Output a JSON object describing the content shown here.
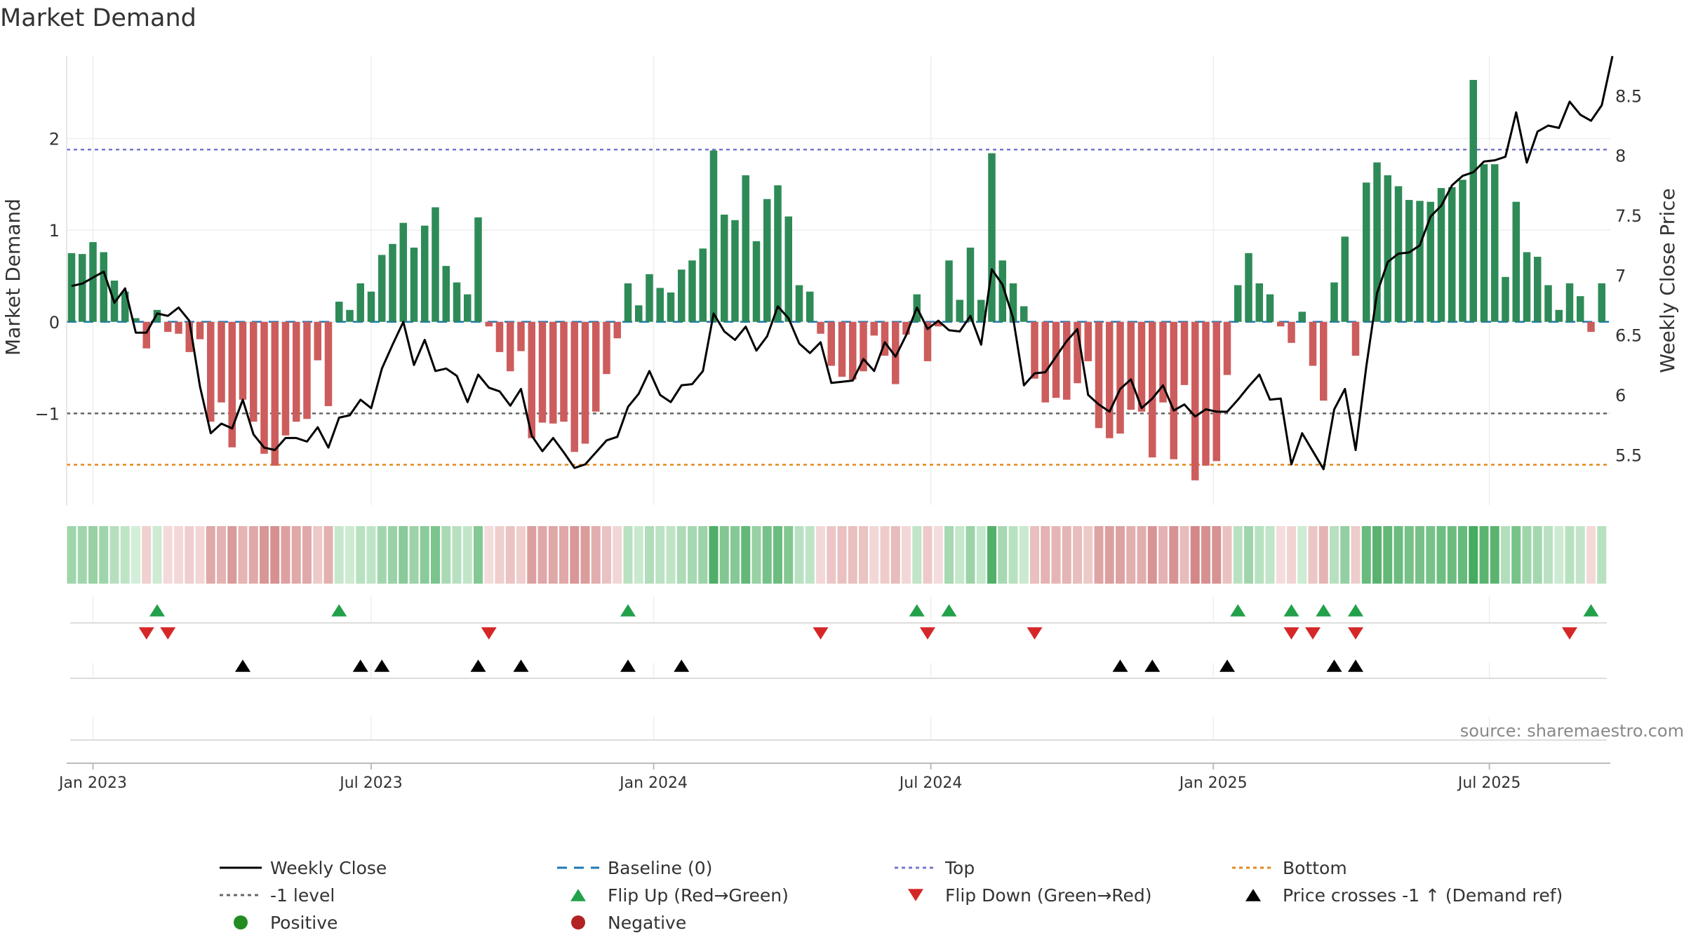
{
  "chart_data": {
    "type": "bar",
    "title": "Market Demand",
    "ylabel": "Market Demand",
    "y2label": "Weekly Close Price",
    "source": "source: sharemaestro.com",
    "ylim": [
      -2.0,
      2.9
    ],
    "y2lim": [
      5.08,
      8.83
    ],
    "yticks": [
      {
        "value": 2,
        "label": "2"
      },
      {
        "value": 1,
        "label": "1"
      },
      {
        "value": 0,
        "label": "0"
      },
      {
        "value": -1,
        "label": "−1"
      }
    ],
    "y2ticks": [
      {
        "value": 8.5,
        "label": "8.5"
      },
      {
        "value": 8,
        "label": "8"
      },
      {
        "value": 7.5,
        "label": "7.5"
      },
      {
        "value": 7,
        "label": "7"
      },
      {
        "value": 6.5,
        "label": "6.5"
      },
      {
        "value": 6,
        "label": "6"
      },
      {
        "value": 5.5,
        "label": "5.5"
      }
    ],
    "x_ticks": [
      {
        "week": 2,
        "label": "Jan 2023"
      },
      {
        "week": 28,
        "label": "Jul 2023"
      },
      {
        "week": 54.4,
        "label": "Jan 2024"
      },
      {
        "week": 80.3,
        "label": "Jul 2024"
      },
      {
        "week": 106.7,
        "label": "Jan 2025"
      },
      {
        "week": 132.5,
        "label": "Jul 2025"
      }
    ],
    "levels": {
      "top": 1.88,
      "minus_one": -1.0,
      "bottom": -1.56,
      "baseline": 0
    },
    "colors": {
      "positive": "#2e8b57",
      "negative": "#cd5c5c",
      "price": "#000000",
      "top": "#7777cc",
      "minus_one": "#666666",
      "bottom": "#e08a1e",
      "baseline": "#1f77b4",
      "flip_up": "#22a04a",
      "flip_down": "#d62728",
      "cross": "#000000",
      "positive_dot": "#228b22",
      "negative_dot": "#b22222"
    },
    "demand": [
      0.75,
      0.74,
      0.87,
      0.76,
      0.45,
      0.33,
      0.04,
      -0.29,
      0.13,
      -0.11,
      -0.13,
      -0.33,
      -0.19,
      -1.09,
      -0.88,
      -1.37,
      -0.85,
      -1.09,
      -1.44,
      -1.57,
      -1.24,
      -1.09,
      -1.06,
      -0.42,
      -0.92,
      0.22,
      0.13,
      0.42,
      0.33,
      0.73,
      0.85,
      1.08,
      0.81,
      1.05,
      1.25,
      0.61,
      0.43,
      0.3,
      1.14,
      -0.05,
      -0.33,
      -0.54,
      -0.32,
      -1.27,
      -1.1,
      -1.11,
      -1.09,
      -1.42,
      -1.33,
      -0.98,
      -0.57,
      -0.18,
      0.42,
      0.18,
      0.52,
      0.37,
      0.32,
      0.57,
      0.67,
      0.8,
      1.87,
      1.17,
      1.11,
      1.6,
      0.88,
      1.34,
      1.49,
      1.15,
      0.4,
      0.33,
      -0.13,
      -0.48,
      -0.6,
      -0.63,
      -0.54,
      -0.15,
      -0.37,
      -0.68,
      -0.14,
      0.3,
      -0.43,
      -0.05,
      0.67,
      0.24,
      0.81,
      0.24,
      1.84,
      0.67,
      0.42,
      0.17,
      -0.62,
      -0.88,
      -0.83,
      -0.85,
      -0.67,
      -0.43,
      -1.16,
      -1.27,
      -1.22,
      -0.96,
      -0.98,
      -1.48,
      -0.88,
      -1.5,
      -0.69,
      -1.73,
      -1.57,
      -1.52,
      -0.58,
      0.4,
      0.75,
      0.42,
      0.3,
      -0.05,
      -0.23,
      0.11,
      -0.48,
      -0.86,
      0.43,
      0.93,
      -0.37,
      1.52,
      1.74,
      1.6,
      1.48,
      1.33,
      1.32,
      1.31,
      1.46,
      1.47,
      1.55,
      2.64,
      1.72,
      1.72,
      0.49,
      1.31,
      0.76,
      0.71,
      0.4,
      0.13,
      0.42,
      0.28,
      -0.11,
      0.42
    ],
    "price": [
      6.91,
      6.93,
      6.98,
      7.03,
      6.77,
      6.89,
      6.52,
      6.52,
      6.68,
      6.66,
      6.73,
      6.62,
      6.07,
      5.68,
      5.76,
      5.72,
      5.96,
      5.67,
      5.56,
      5.54,
      5.64,
      5.64,
      5.61,
      5.73,
      5.56,
      5.81,
      5.83,
      5.96,
      5.89,
      6.22,
      6.42,
      6.61,
      6.25,
      6.46,
      6.2,
      6.22,
      6.16,
      5.94,
      6.17,
      6.06,
      6.03,
      5.91,
      6.05,
      5.66,
      5.53,
      5.64,
      5.52,
      5.39,
      5.42,
      5.52,
      5.62,
      5.65,
      5.9,
      6.01,
      6.2,
      6.0,
      5.94,
      6.08,
      6.09,
      6.2,
      6.68,
      6.53,
      6.46,
      6.57,
      6.37,
      6.49,
      6.74,
      6.64,
      6.43,
      6.35,
      6.44,
      6.1,
      6.11,
      6.12,
      6.3,
      6.2,
      6.44,
      6.32,
      6.5,
      6.73,
      6.55,
      6.62,
      6.54,
      6.53,
      6.66,
      6.42,
      7.05,
      6.92,
      6.64,
      6.08,
      6.18,
      6.19,
      6.32,
      6.45,
      6.55,
      6.0,
      5.92,
      5.86,
      6.05,
      6.13,
      5.89,
      5.97,
      6.08,
      5.87,
      5.92,
      5.82,
      5.88,
      5.86,
      5.86,
      5.96,
      6.07,
      6.17,
      5.96,
      5.97,
      5.42,
      5.68,
      5.53,
      5.38,
      5.88,
      6.05,
      5.54,
      6.24,
      6.85,
      7.11,
      7.18,
      7.19,
      7.25,
      7.49,
      7.58,
      7.75,
      7.83,
      7.86,
      7.95,
      7.96,
      7.99,
      8.36,
      7.94,
      8.2,
      8.25,
      8.23,
      8.45,
      8.34,
      8.29,
      8.42,
      8.83
    ],
    "flip_up_weeks": [
      8,
      25,
      52,
      79,
      82,
      109,
      114,
      117,
      120,
      142
    ],
    "flip_down_weeks": [
      7,
      9,
      39,
      70,
      80,
      90,
      114,
      116,
      120,
      140
    ],
    "price_cross_weeks": [
      16,
      27,
      29,
      38,
      42,
      52,
      57,
      98,
      101,
      108,
      118,
      120
    ],
    "legend": [
      {
        "label": "Weekly Close",
        "kind": "line",
        "color": "#000000"
      },
      {
        "label": "Baseline (0)",
        "kind": "dash",
        "color": "#1f77b4"
      },
      {
        "label": "Top",
        "kind": "dot",
        "color": "#7777cc"
      },
      {
        "label": "Bottom",
        "kind": "dot",
        "color": "#e08a1e"
      },
      {
        "label": "-1 level",
        "kind": "dot",
        "color": "#666666"
      },
      {
        "label": "Flip Up (Red→Green)",
        "kind": "tri-up",
        "color": "#22a04a"
      },
      {
        "label": "Flip Down (Green→Red)",
        "kind": "tri-down",
        "color": "#d62728"
      },
      {
        "label": "Price crosses -1 ↑ (Demand ref)",
        "kind": "tri-up",
        "color": "#000000"
      },
      {
        "label": "Positive",
        "kind": "circle",
        "color": "#228b22"
      },
      {
        "label": "Negative",
        "kind": "circle",
        "color": "#b22222"
      }
    ]
  }
}
